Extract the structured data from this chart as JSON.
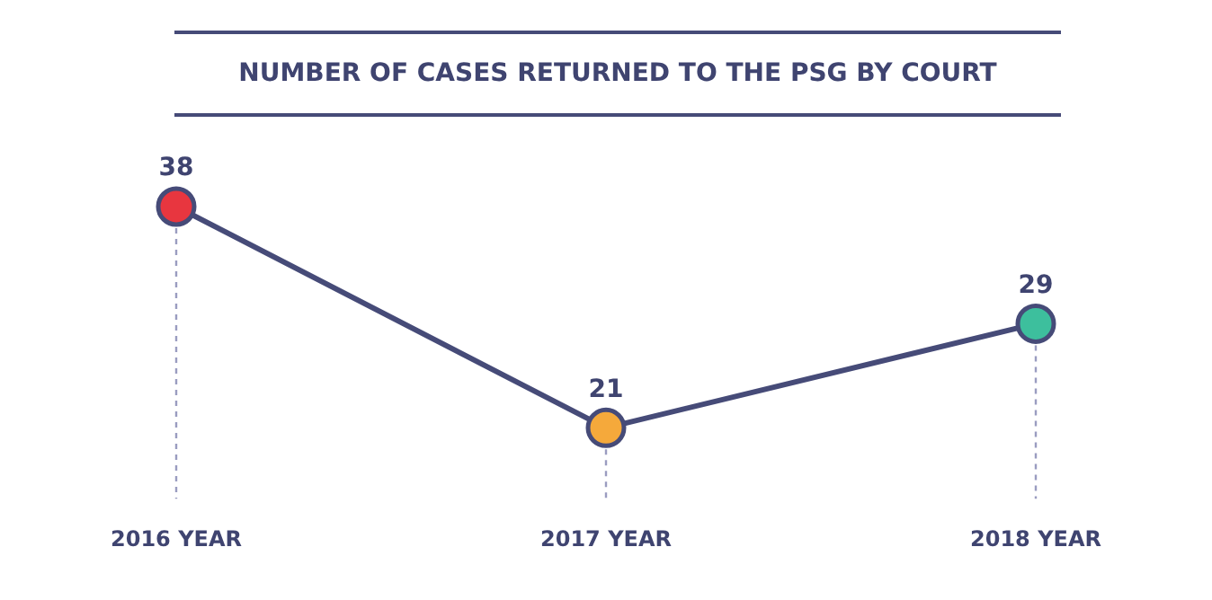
{
  "chart_data": {
    "type": "line",
    "title": "NUMBER OF CASES RETURNED TO THE PSG BY COURT",
    "categories": [
      "2016 YEAR",
      "2017 YEAR",
      "2018 YEAR"
    ],
    "series": [
      {
        "color": "#464b78",
        "colors": [
          "#e8363f",
          "#f5a93b",
          "#3dbf9d"
        ],
        "values": [
          38,
          21,
          29
        ]
      }
    ],
    "data_labels": true,
    "grid": "x",
    "legend": false,
    "marker": "circle",
    "line_style": "solid"
  }
}
